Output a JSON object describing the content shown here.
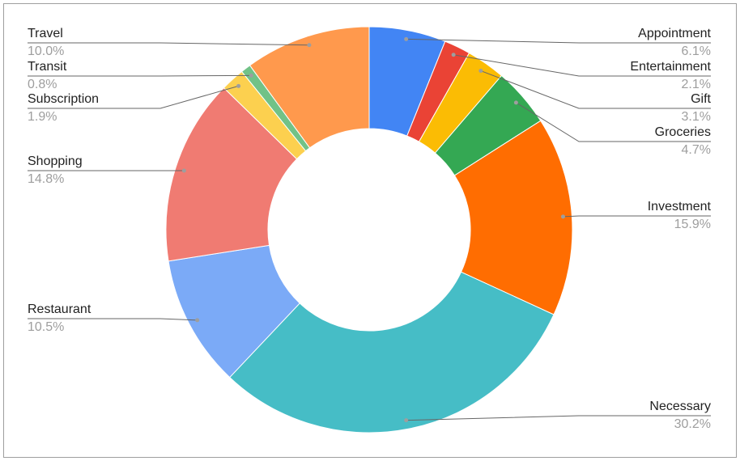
{
  "chart_data": {
    "type": "donut",
    "categories": [
      "Appointment",
      "Entertainment",
      "Gift",
      "Groceries",
      "Investment",
      "Necessary",
      "Restaurant",
      "Shopping",
      "Subscription",
      "Transit",
      "Travel"
    ],
    "values": [
      6.1,
      2.1,
      3.1,
      4.7,
      15.9,
      30.2,
      10.5,
      14.8,
      1.9,
      0.8,
      10.0
    ],
    "value_labels": [
      "6.1%",
      "2.1%",
      "3.1%",
      "4.7%",
      "15.9%",
      "30.2%",
      "10.5%",
      "14.8%",
      "1.9%",
      "0.8%",
      "10.0%"
    ],
    "colors": [
      "#4285f4",
      "#ea4335",
      "#fbbc04",
      "#34a853",
      "#ff6d01",
      "#46bdc6",
      "#7baaf7",
      "#f07b72",
      "#fcd04f",
      "#71c287",
      "#ff994d"
    ]
  }
}
